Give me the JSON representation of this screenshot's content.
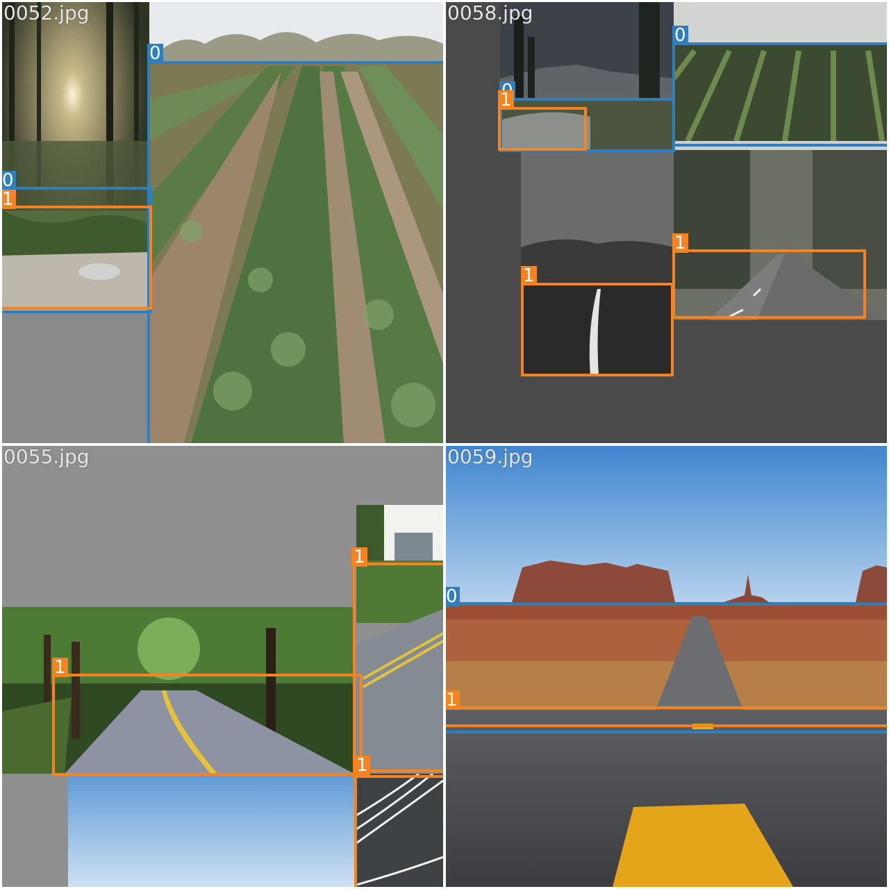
{
  "tiles": [
    {
      "filename": "0052.jpg"
    },
    {
      "filename": "0058.jpg"
    },
    {
      "filename": "0055.jpg"
    },
    {
      "filename": "0059.jpg"
    }
  ],
  "labels": {
    "class0": "0",
    "class1": "1"
  },
  "colors": {
    "class0": "#2f7fbf",
    "class1": "#f5831f",
    "mosaic_gray": "#8a8a8a"
  }
}
